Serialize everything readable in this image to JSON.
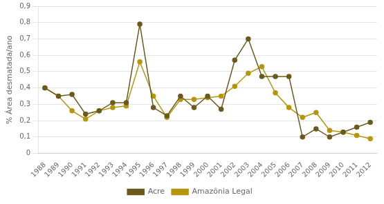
{
  "chart_data": {
    "type": "line",
    "ylabel": "% Área desmatada/ano",
    "categories": [
      "1988",
      "1989",
      "1990",
      "1991",
      "1992",
      "1993",
      "1994",
      "1995",
      "1996",
      "1997",
      "1998",
      "1999",
      "2000",
      "2001",
      "2002",
      "2003",
      "2004",
      "2005",
      "2006",
      "2007",
      "2008",
      "2009",
      "2010",
      "2011",
      "2012"
    ],
    "series": [
      {
        "name": "Acre",
        "color": "#6b5a1e",
        "marker": "circle",
        "line_style": "solid",
        "values": [
          0.4,
          0.35,
          0.36,
          0.24,
          0.26,
          0.31,
          0.31,
          0.79,
          0.28,
          0.23,
          0.35,
          0.28,
          0.35,
          0.27,
          0.57,
          0.7,
          0.47,
          0.47,
          0.47,
          0.1,
          0.15,
          0.1,
          0.13,
          0.16,
          0.19
        ]
      },
      {
        "name": "Amazônia Legal",
        "color": "#b8960c",
        "marker": "circle",
        "line_style": "solid",
        "values": [
          0.4,
          0.35,
          0.26,
          0.21,
          0.26,
          0.28,
          0.29,
          0.56,
          0.35,
          0.22,
          0.33,
          0.33,
          0.34,
          0.35,
          0.41,
          0.49,
          0.53,
          0.37,
          0.28,
          0.22,
          0.25,
          0.14,
          0.13,
          0.11,
          0.09
        ]
      }
    ],
    "ylim": [
      0,
      0.9
    ],
    "yticks": [
      0,
      {
        "value": 0.1,
        "label": "0,1"
      },
      {
        "value": 0.2,
        "label": "0,2"
      },
      {
        "value": 0.3,
        "label": "0,3"
      },
      {
        "value": 0.4,
        "label": "0,4"
      },
      {
        "value": 0.5,
        "label": "0,5"
      },
      {
        "value": 0.6,
        "label": "0,6"
      },
      {
        "value": 0.7,
        "label": "0,7"
      },
      {
        "value": 0.8,
        "label": "0,8"
      },
      {
        "value": 0.9,
        "label": "0,9"
      }
    ],
    "grid": "y",
    "legend": "bottom"
  }
}
